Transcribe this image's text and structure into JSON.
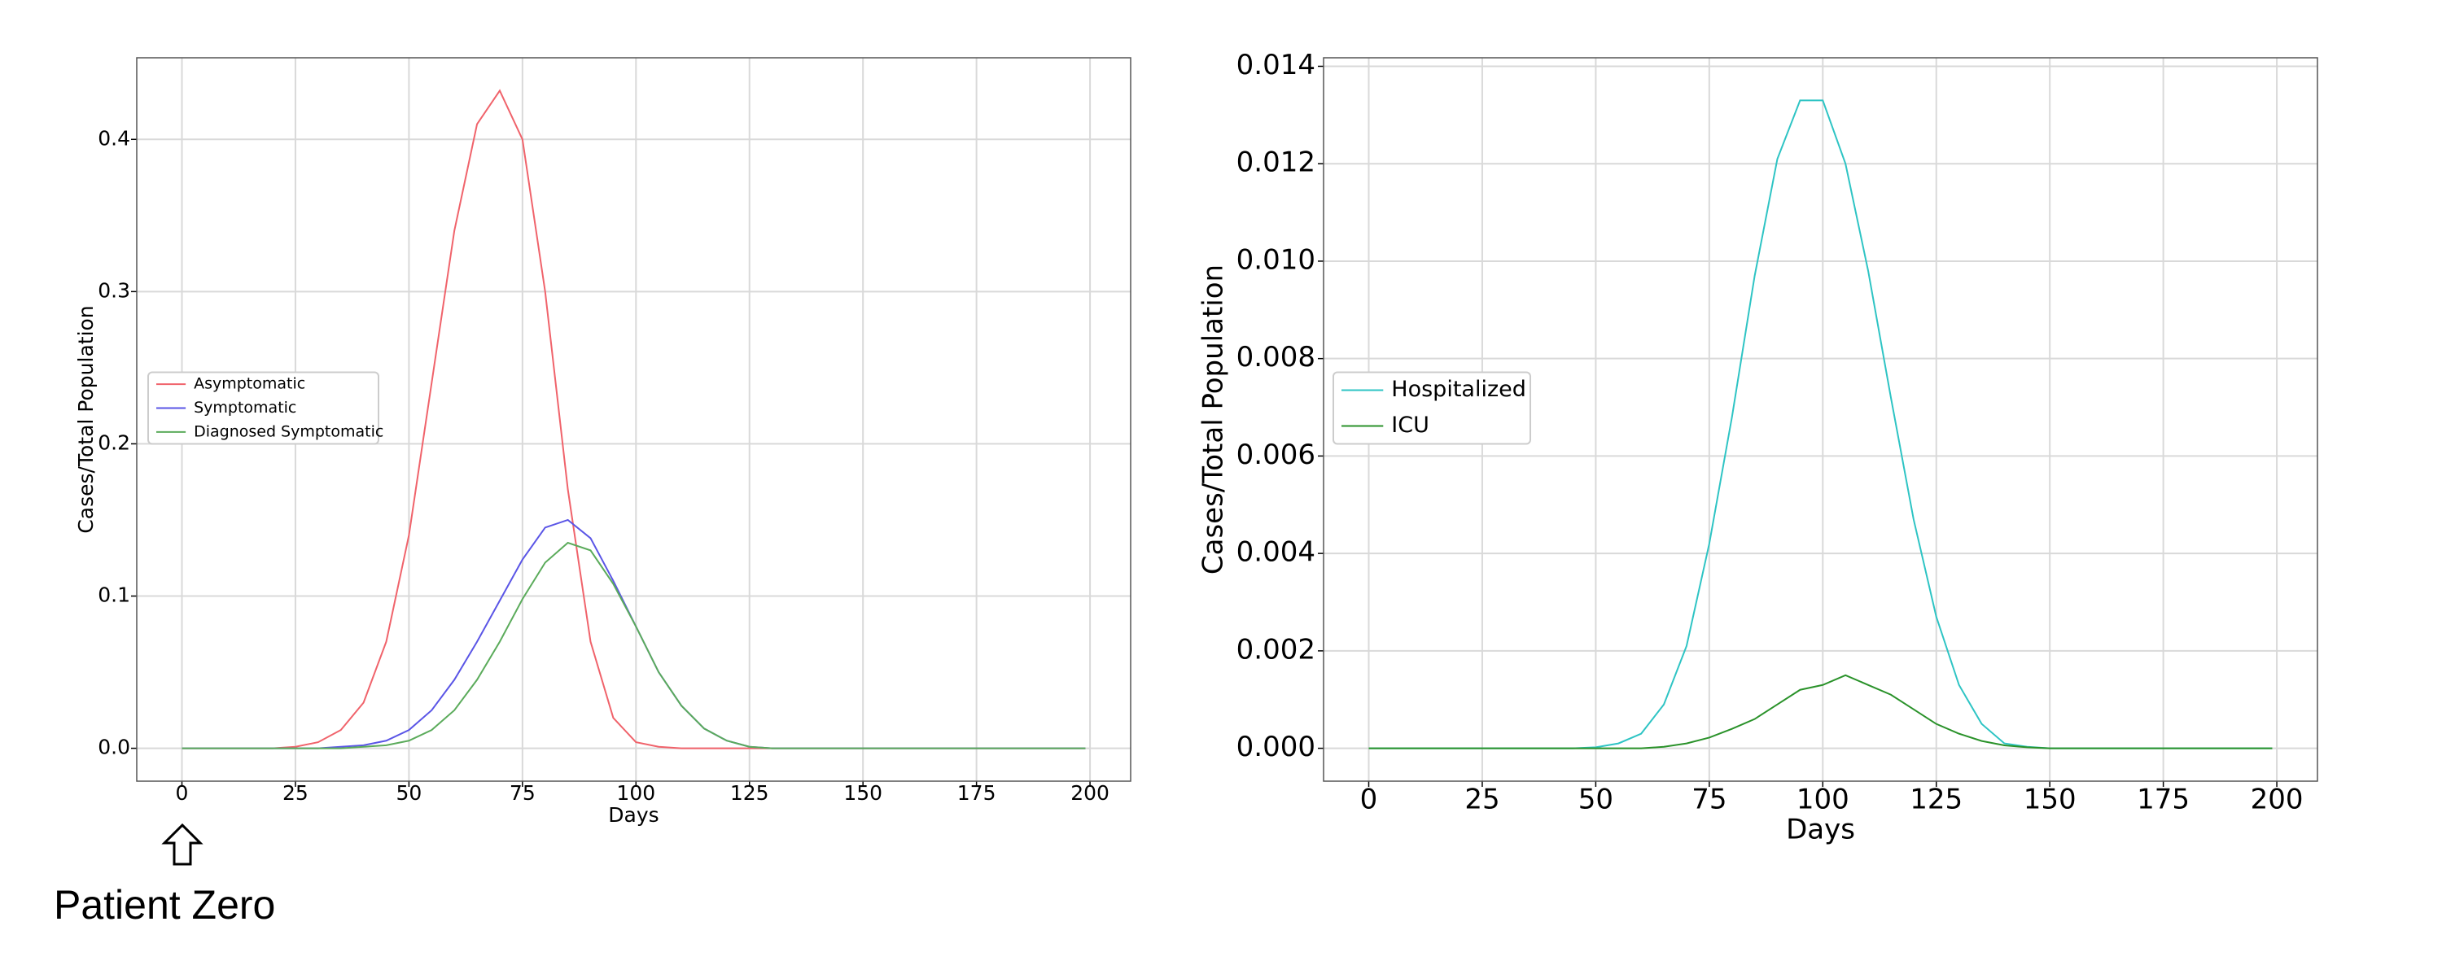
{
  "chart_data": [
    {
      "type": "line",
      "xlabel": "Days",
      "ylabel": "Cases/Total Population",
      "annotation": "Patient Zero",
      "x": [
        0,
        5,
        10,
        15,
        20,
        25,
        30,
        35,
        40,
        45,
        50,
        55,
        60,
        65,
        70,
        75,
        80,
        85,
        90,
        95,
        100,
        105,
        110,
        115,
        120,
        125,
        130,
        135,
        140,
        145,
        150,
        155,
        160,
        165,
        170,
        175,
        180,
        185,
        190,
        195,
        199
      ],
      "series": [
        {
          "name": "Asymptomatic",
          "color": "#f0636b",
          "values": [
            0,
            0,
            0,
            0,
            0,
            0.001,
            0.004,
            0.012,
            0.03,
            0.07,
            0.14,
            0.24,
            0.34,
            0.41,
            0.432,
            0.4,
            0.3,
            0.17,
            0.07,
            0.02,
            0.004,
            0.001,
            0,
            0,
            0,
            0,
            0,
            0,
            0,
            0,
            0,
            0,
            0,
            0,
            0,
            0,
            0,
            0,
            0,
            0,
            0
          ]
        },
        {
          "name": "Symptomatic",
          "color": "#5a55e6",
          "values": [
            0,
            0,
            0,
            0,
            0,
            0,
            0,
            0.001,
            0.002,
            0.005,
            0.012,
            0.025,
            0.045,
            0.07,
            0.097,
            0.124,
            0.145,
            0.15,
            0.138,
            0.11,
            0.08,
            0.05,
            0.028,
            0.013,
            0.005,
            0.001,
            0,
            0,
            0,
            0,
            0,
            0,
            0,
            0,
            0,
            0,
            0,
            0,
            0,
            0,
            0
          ]
        },
        {
          "name": "Diagnosed Symptomatic",
          "color": "#5bab5b",
          "values": [
            0,
            0,
            0,
            0,
            0,
            0,
            0,
            0,
            0.001,
            0.002,
            0.005,
            0.012,
            0.025,
            0.045,
            0.07,
            0.098,
            0.122,
            0.135,
            0.13,
            0.108,
            0.08,
            0.05,
            0.028,
            0.013,
            0.005,
            0.001,
            0,
            0,
            0,
            0,
            0,
            0,
            0,
            0,
            0,
            0,
            0,
            0,
            0,
            0,
            0
          ]
        }
      ],
      "xlim": [
        -9.95,
        208.95
      ],
      "ylim": [
        -0.0216,
        0.4536
      ],
      "xticks": [
        0,
        25,
        50,
        75,
        100,
        125,
        150,
        175,
        200
      ],
      "yticks": [
        {
          "value": 0,
          "label": "0.0"
        },
        0.1,
        0.2,
        0.3,
        0.4
      ],
      "grid": true,
      "legend": "center left"
    },
    {
      "type": "line",
      "xlabel": "Days",
      "ylabel": "Cases/Total Population",
      "x": [
        0,
        5,
        10,
        15,
        20,
        25,
        30,
        35,
        40,
        45,
        50,
        55,
        60,
        65,
        70,
        75,
        80,
        85,
        90,
        95,
        100,
        105,
        110,
        115,
        120,
        125,
        130,
        135,
        140,
        145,
        150,
        155,
        160,
        165,
        170,
        175,
        180,
        185,
        190,
        195,
        199
      ],
      "series": [
        {
          "name": "Hospitalized",
          "color": "#2ec4c4",
          "values": [
            0,
            0,
            0,
            0,
            0,
            0,
            0,
            0,
            0,
            0,
            2e-05,
            0.0001,
            0.0003,
            0.0009,
            0.0021,
            0.0042,
            0.0068,
            0.0097,
            0.0121,
            0.0133,
            0.0133,
            0.012,
            0.0098,
            0.0072,
            0.0047,
            0.0027,
            0.0013,
            0.0005,
            0.0001,
            3e-05,
            0,
            0,
            0,
            0,
            0,
            0,
            0,
            0,
            0,
            0,
            0
          ]
        },
        {
          "name": "ICU",
          "color": "#2a922a",
          "values": [
            0,
            0,
            0,
            0,
            0,
            0,
            0,
            0,
            0,
            0,
            0,
            0,
            0,
            3e-05,
            0.0001,
            0.00022,
            0.0004,
            0.0006,
            0.0009,
            0.0012,
            0.0013,
            0.0015,
            0.0013,
            0.0011,
            0.0008,
            0.0005,
            0.0003,
            0.00015,
            6e-05,
            2e-05,
            0,
            0,
            0,
            0,
            0,
            0,
            0,
            0,
            0,
            0,
            0
          ]
        }
      ],
      "xlim": [
        -9.95,
        208.95
      ],
      "ylim": [
        -0.000675,
        0.014175
      ],
      "xticks": [
        0,
        25,
        50,
        75,
        100,
        125,
        150,
        175,
        200
      ],
      "yticks": [
        {
          "value": 0,
          "label": "0.000"
        },
        0.002,
        0.004,
        0.006,
        0.008,
        {
          "value": 0.01,
          "label": "0.010"
        },
        0.012,
        0.014
      ],
      "grid": true,
      "legend": "center left"
    }
  ]
}
